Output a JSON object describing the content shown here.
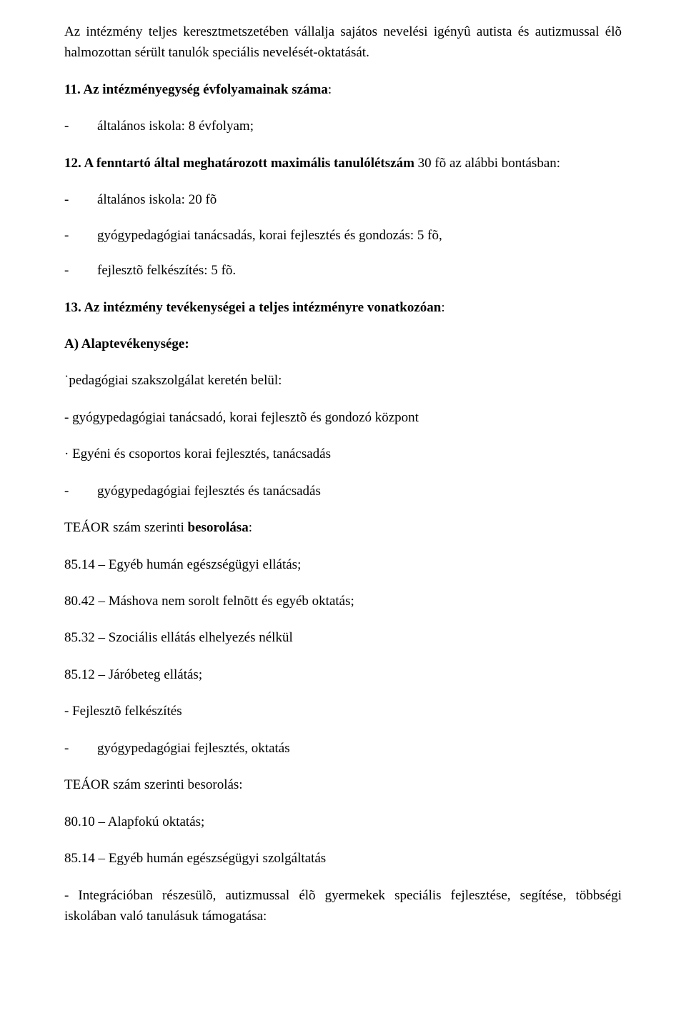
{
  "p1": "Az intézmény teljes keresztmetszetében vállalja sajátos nevelési igényû autista és autizmussal élõ halmozottan sérült tanulók speciális nevelését-oktatását.",
  "h11_prefix": "11. Az intézményegység évfolyamainak száma",
  "colon": ":",
  "h11_items": [
    {
      "dash": "-",
      "text": "általános iskola: 8 évfolyam;"
    }
  ],
  "h12_prefix": "12. A fenntartó által meghatározott maximális tanulólétszám",
  "h12_suffix": " 30 fõ az alábbi bontásban:",
  "h12_items": [
    {
      "dash": "-",
      "text": "általános iskola: 20 fõ"
    },
    {
      "dash": "-",
      "text": "gyógypedagógiai tanácsadás, korai fejlesztés és gondozás: 5 fõ,"
    },
    {
      "dash": "-",
      "text": "fejlesztõ felkészítés: 5 fõ."
    }
  ],
  "h13_prefix": "13. Az intézmény tevékenységei a teljes intézményre vonatkozóan",
  "a_label": "A)   Alaptevékenysége:",
  "a_lines": [
    "˙pedagógiai szakszolgálat keretén belül:",
    "- gyógypedagógiai tanácsadó, korai fejlesztõ és gondozó központ",
    "· Egyéni és csoportos korai fejlesztés, tanácsadás"
  ],
  "a_dash_item": {
    "dash": "-",
    "text": "gyógypedagógiai fejlesztés és tanácsadás"
  },
  "teaor1_prefix": "TEÁOR szám szerinti ",
  "teaor1_bold": "besorolása",
  "teaor1_list": [
    "85.14 – Egyéb humán egészségügyi ellátás;",
    "80.42 – Máshova nem sorolt felnõtt és egyéb oktatás;",
    "85.32 – Szociális ellátás elhelyezés nélkül",
    "85.12 – Járóbeteg ellátás;"
  ],
  "fejl": "- Fejlesztõ felkészítés",
  "fejl_item": {
    "dash": "-",
    "text": "gyógypedagógiai fejlesztés, oktatás"
  },
  "teaor2_label": "TEÁOR szám szerinti besorolás:",
  "teaor2_list": [
    "80.10 – Alapfokú oktatás;",
    "85.14 – Egyéb humán egészségügyi szolgáltatás"
  ],
  "last": "- Integrációban részesülõ, autizmussal élõ gyermekek speciális fejlesztése, segítése, többségi iskolában való tanulásuk támogatása:"
}
